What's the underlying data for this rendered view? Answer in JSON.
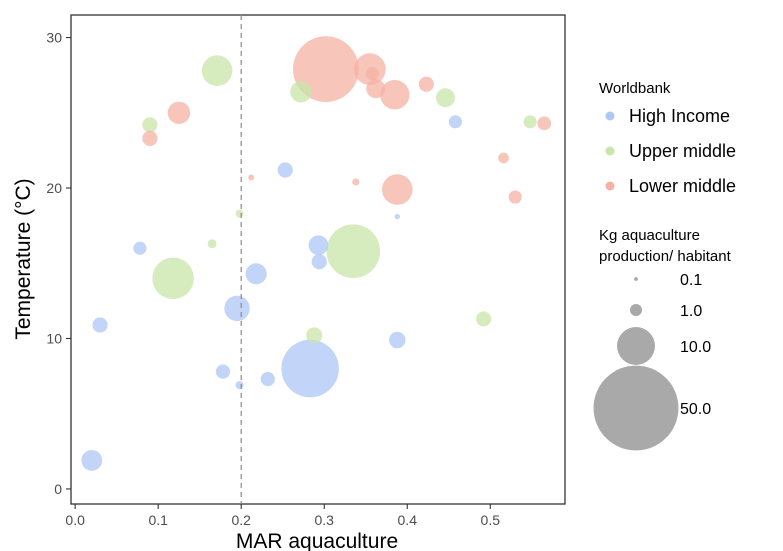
{
  "chart_data": {
    "type": "scatter",
    "title": "",
    "xlabel": "MAR aquaculture",
    "ylabel": "Temperature (°C)",
    "xlim": [
      -0.005,
      0.59
    ],
    "ylim": [
      -1,
      31.5
    ],
    "x_ticks": [
      0.0,
      0.1,
      0.2,
      0.3,
      0.4,
      0.5
    ],
    "x_tick_labels": [
      "0.0",
      "0.1",
      "0.2",
      "0.3",
      "0.4",
      "0.5"
    ],
    "y_ticks": [
      0,
      10,
      20,
      30
    ],
    "y_tick_labels": [
      "0",
      "10",
      "20",
      "30"
    ],
    "grid": false,
    "reference_line": {
      "x": 0.2,
      "style": "dashed"
    },
    "color_legend": {
      "title": "Worldbank",
      "placement": "right",
      "entries": [
        {
          "label": "High Income",
          "color": "#aec7f5"
        },
        {
          "label": "Upper middle",
          "color": "#c8e6a8"
        },
        {
          "label": "Lower middle",
          "color": "#f6b1a4"
        }
      ]
    },
    "size_legend": {
      "title": "Kg aquaculture production/ habitant",
      "title_lines": [
        "Kg aquaculture",
        "production/ habitant"
      ],
      "color": "#8c8c8c",
      "entries": [
        {
          "label": "0.1",
          "value": 0.1
        },
        {
          "label": "1.0",
          "value": 1.0
        },
        {
          "label": "10.0",
          "value": 10.0
        },
        {
          "label": "50.0",
          "value": 50.0
        }
      ]
    },
    "series": [
      {
        "name": "High Income",
        "color": "#aec7f5",
        "points": [
          {
            "x": 0.02,
            "y": 1.9,
            "size": 3.0
          },
          {
            "x": 0.03,
            "y": 10.9,
            "size": 1.6
          },
          {
            "x": 0.078,
            "y": 16.0,
            "size": 1.2
          },
          {
            "x": 0.178,
            "y": 7.8,
            "size": 1.4
          },
          {
            "x": 0.198,
            "y": 6.9,
            "size": 0.45
          },
          {
            "x": 0.195,
            "y": 12.0,
            "size": 4.5
          },
          {
            "x": 0.218,
            "y": 14.3,
            "size": 3.1
          },
          {
            "x": 0.232,
            "y": 7.3,
            "size": 1.4
          },
          {
            "x": 0.253,
            "y": 21.2,
            "size": 1.6
          },
          {
            "x": 0.283,
            "y": 8.0,
            "size": 23.0
          },
          {
            "x": 0.293,
            "y": 16.2,
            "size": 2.7
          },
          {
            "x": 0.294,
            "y": 15.1,
            "size": 1.6
          },
          {
            "x": 0.388,
            "y": 9.9,
            "size": 1.9
          },
          {
            "x": 0.388,
            "y": 18.1,
            "size": 0.2
          },
          {
            "x": 0.458,
            "y": 24.4,
            "size": 1.2
          }
        ]
      },
      {
        "name": "Upper middle",
        "color": "#c8e6a8",
        "points": [
          {
            "x": 0.09,
            "y": 24.2,
            "size": 1.6
          },
          {
            "x": 0.118,
            "y": 14.0,
            "size": 12.0
          },
          {
            "x": 0.165,
            "y": 16.3,
            "size": 0.55
          },
          {
            "x": 0.171,
            "y": 27.8,
            "size": 6.5
          },
          {
            "x": 0.198,
            "y": 18.3,
            "size": 0.45
          },
          {
            "x": 0.272,
            "y": 26.4,
            "size": 3.2
          },
          {
            "x": 0.288,
            "y": 10.2,
            "size": 1.8
          },
          {
            "x": 0.335,
            "y": 15.8,
            "size": 20.0
          },
          {
            "x": 0.446,
            "y": 26.0,
            "size": 2.5
          },
          {
            "x": 0.492,
            "y": 11.3,
            "size": 1.6
          },
          {
            "x": 0.548,
            "y": 24.4,
            "size": 1.2
          }
        ]
      },
      {
        "name": "Lower middle",
        "color": "#f6b1a4",
        "points": [
          {
            "x": 0.09,
            "y": 23.3,
            "size": 1.6
          },
          {
            "x": 0.125,
            "y": 25.0,
            "size": 3.5
          },
          {
            "x": 0.212,
            "y": 20.7,
            "size": 0.25
          },
          {
            "x": 0.302,
            "y": 27.9,
            "size": 30.0
          },
          {
            "x": 0.338,
            "y": 20.4,
            "size": 0.35
          },
          {
            "x": 0.355,
            "y": 27.9,
            "size": 7.0
          },
          {
            "x": 0.358,
            "y": 27.6,
            "size": 1.2
          },
          {
            "x": 0.362,
            "y": 26.6,
            "size": 2.5
          },
          {
            "x": 0.385,
            "y": 26.2,
            "size": 6.0
          },
          {
            "x": 0.388,
            "y": 19.9,
            "size": 6.5
          },
          {
            "x": 0.423,
            "y": 26.9,
            "size": 1.6
          },
          {
            "x": 0.516,
            "y": 22.0,
            "size": 0.8
          },
          {
            "x": 0.53,
            "y": 19.4,
            "size": 1.2
          },
          {
            "x": 0.565,
            "y": 24.3,
            "size": 1.3
          }
        ]
      }
    ]
  }
}
